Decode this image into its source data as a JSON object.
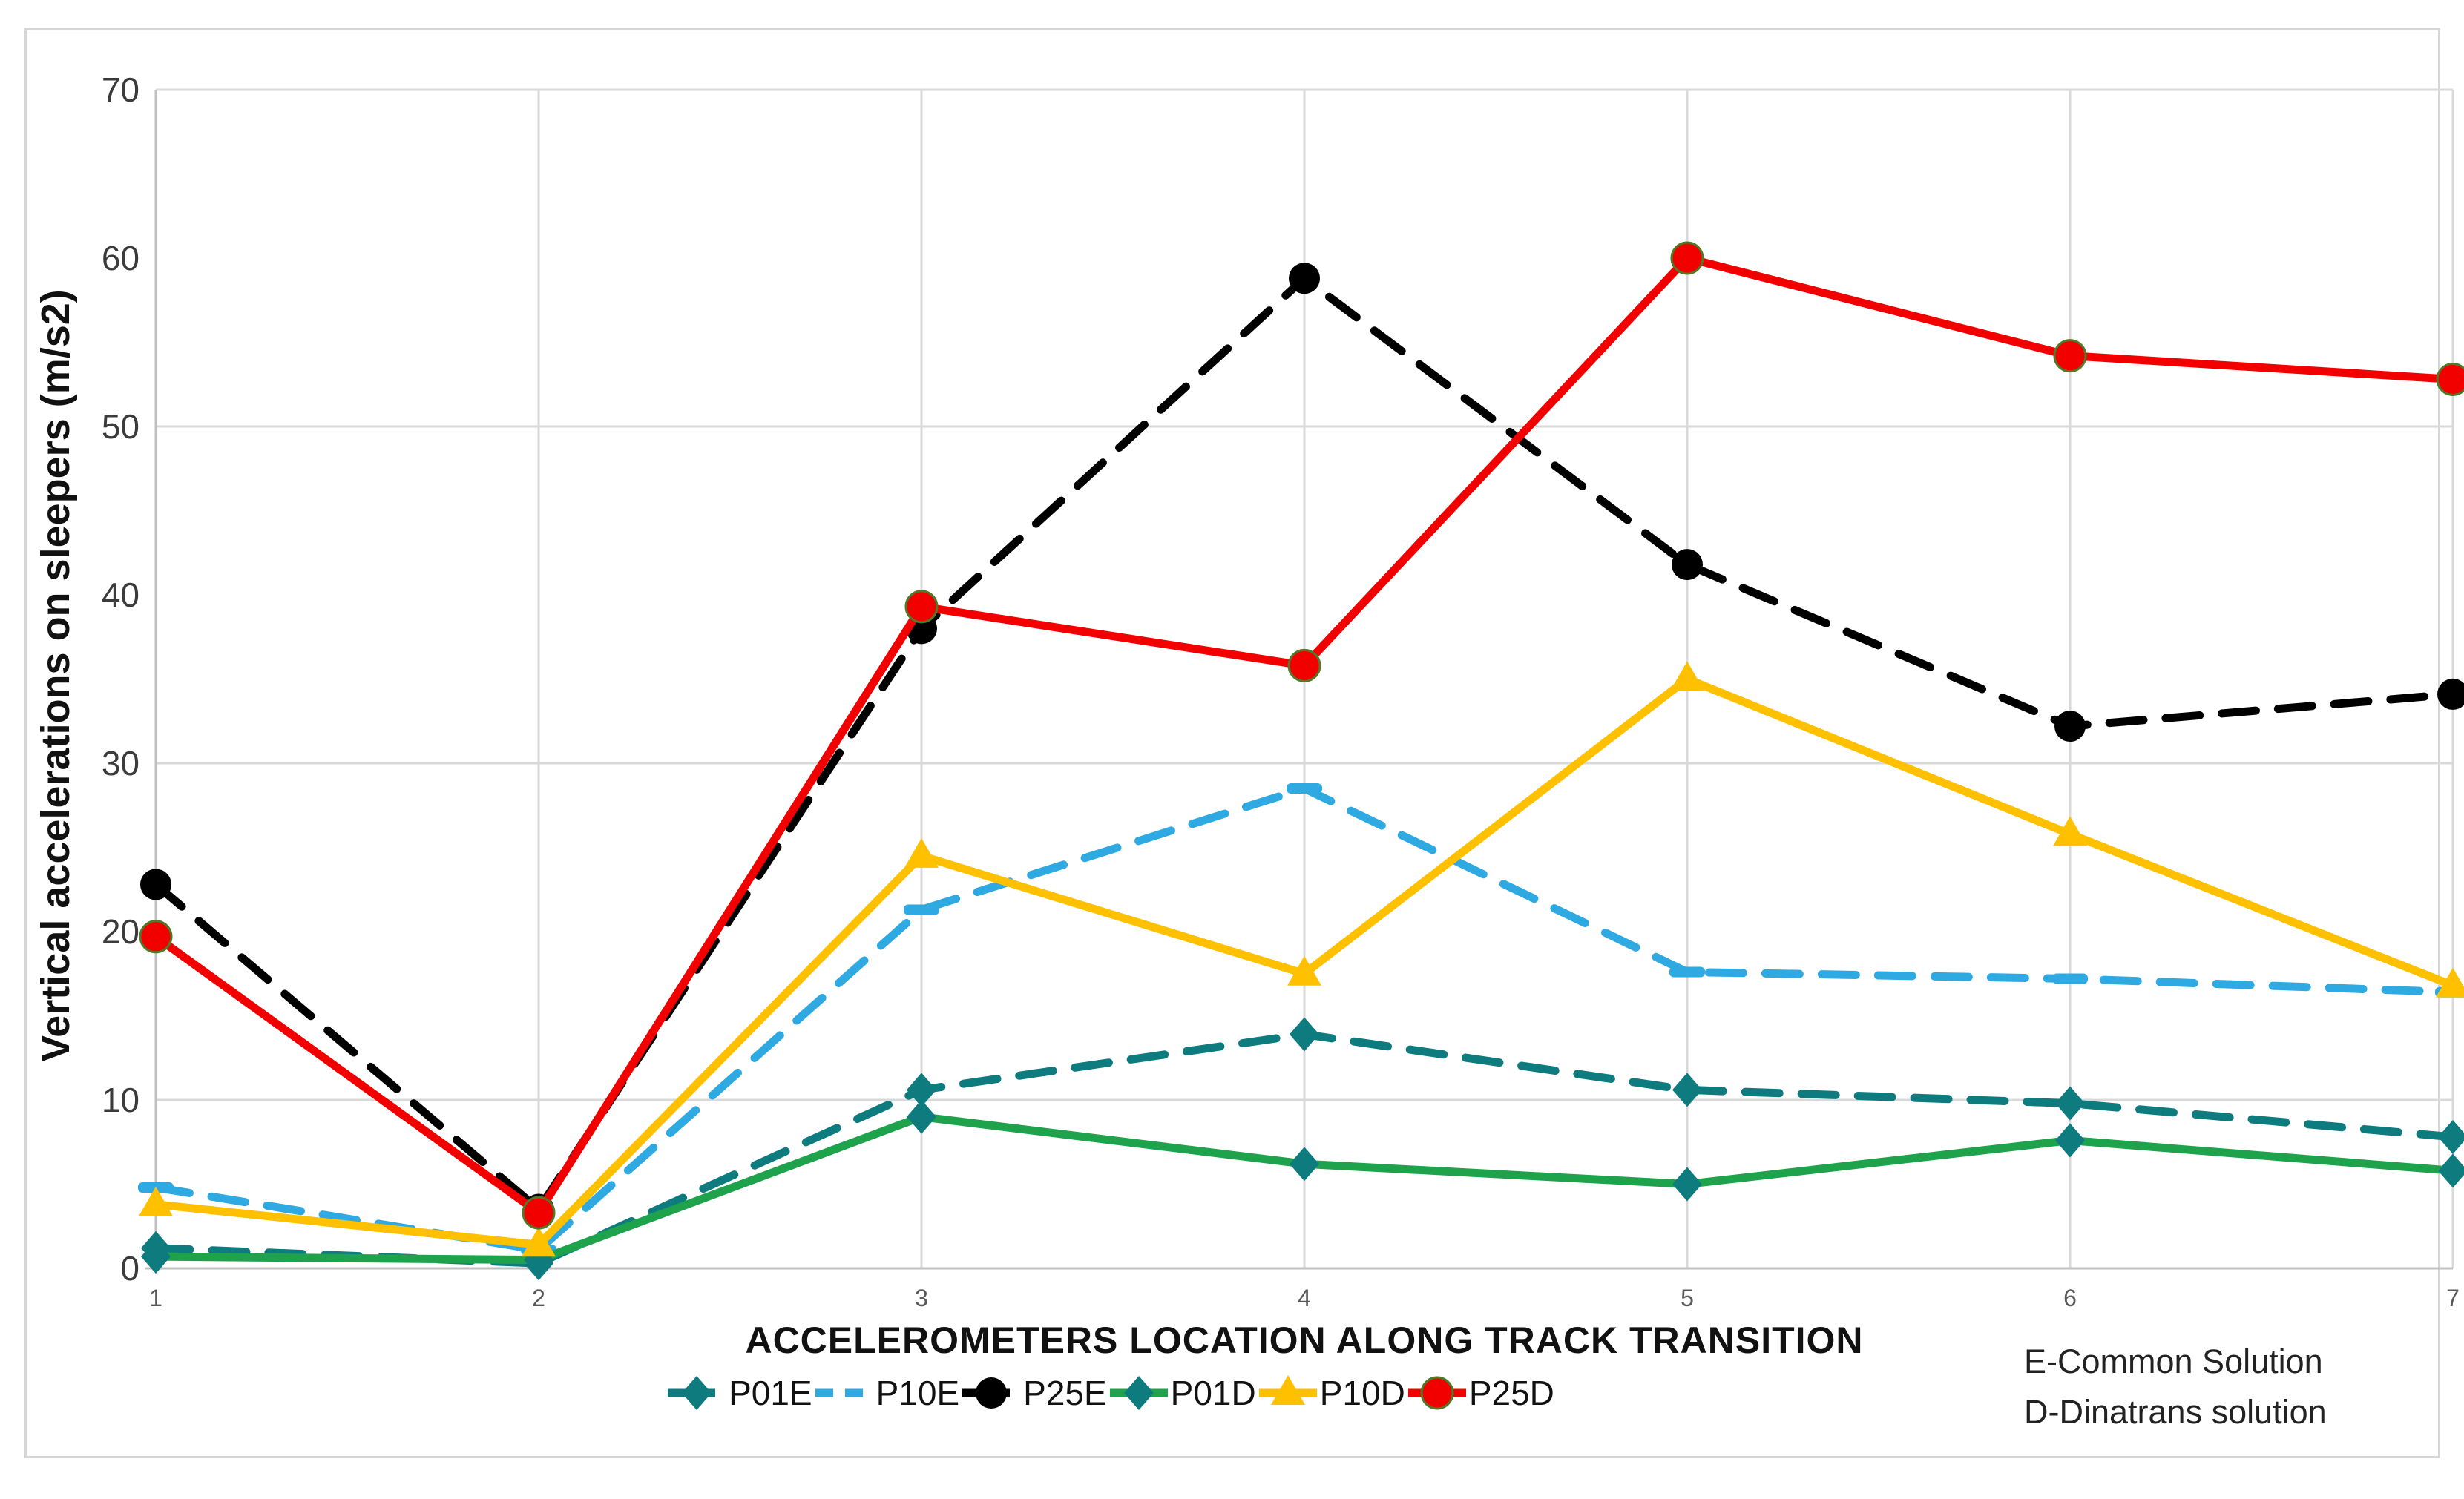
{
  "figure": {
    "y_axis_title": "Vertical accelerations on sleepers (m/s2)",
    "x_axis_title": "ACCELEROMETERS LOCATION ALONG TRACK TRANSITION",
    "annotations": [
      "E-Common Solution",
      "D-Dinatrans solution"
    ]
  },
  "chart_data": {
    "type": "line",
    "title": "",
    "xlabel": "ACCELEROMETERS LOCATION ALONG TRACK TRANSITION",
    "ylabel": "Vertical accelerations on sleepers (m/s2)",
    "categories": [
      "1",
      "2",
      "3",
      "4",
      "5",
      "6",
      "7"
    ],
    "y_ticks": [
      0,
      10,
      20,
      30,
      40,
      50,
      60,
      70
    ],
    "ylim": [
      0,
      70
    ],
    "grid": {
      "horizontal_lines_at": [
        10,
        30,
        50,
        70
      ],
      "vertical_at_each_category": true,
      "color": "#d9d9d9"
    },
    "legend_position": "bottom",
    "axis_line_color": "#c0c0c0",
    "series": [
      {
        "name": "P01E",
        "color": "#0e7c7f",
        "style": "dashed",
        "marker": "diamond",
        "values": [
          1.2,
          0.3,
          10.6,
          13.9,
          10.6,
          9.8,
          7.8
        ]
      },
      {
        "name": "P10E",
        "color": "#2fa9e1",
        "style": "dashed",
        "marker": "dash",
        "values": [
          4.8,
          1.1,
          21.3,
          28.5,
          17.6,
          17.2,
          16.4
        ]
      },
      {
        "name": "P25E",
        "color": "#000000",
        "style": "dashed",
        "marker": "circle",
        "values": [
          22.8,
          3.5,
          38.0,
          58.8,
          41.8,
          32.2,
          34.1
        ]
      },
      {
        "name": "P01D",
        "color": "#1ea34c",
        "marker_color": "#0e7c7f",
        "style": "solid",
        "marker": "diamond",
        "values": [
          0.7,
          0.5,
          9.0,
          6.2,
          5.0,
          7.6,
          5.8
        ]
      },
      {
        "name": "P10D",
        "color": "#ffc000",
        "style": "solid",
        "marker": "triangle",
        "values": [
          3.8,
          1.4,
          24.5,
          17.5,
          35.0,
          25.8,
          16.8
        ]
      },
      {
        "name": "P25D",
        "color": "#f20000",
        "marker_outline": "#4f7a28",
        "style": "solid",
        "marker": "circle",
        "values": [
          19.7,
          3.3,
          39.3,
          35.8,
          60.0,
          54.2,
          52.8
        ]
      }
    ]
  }
}
